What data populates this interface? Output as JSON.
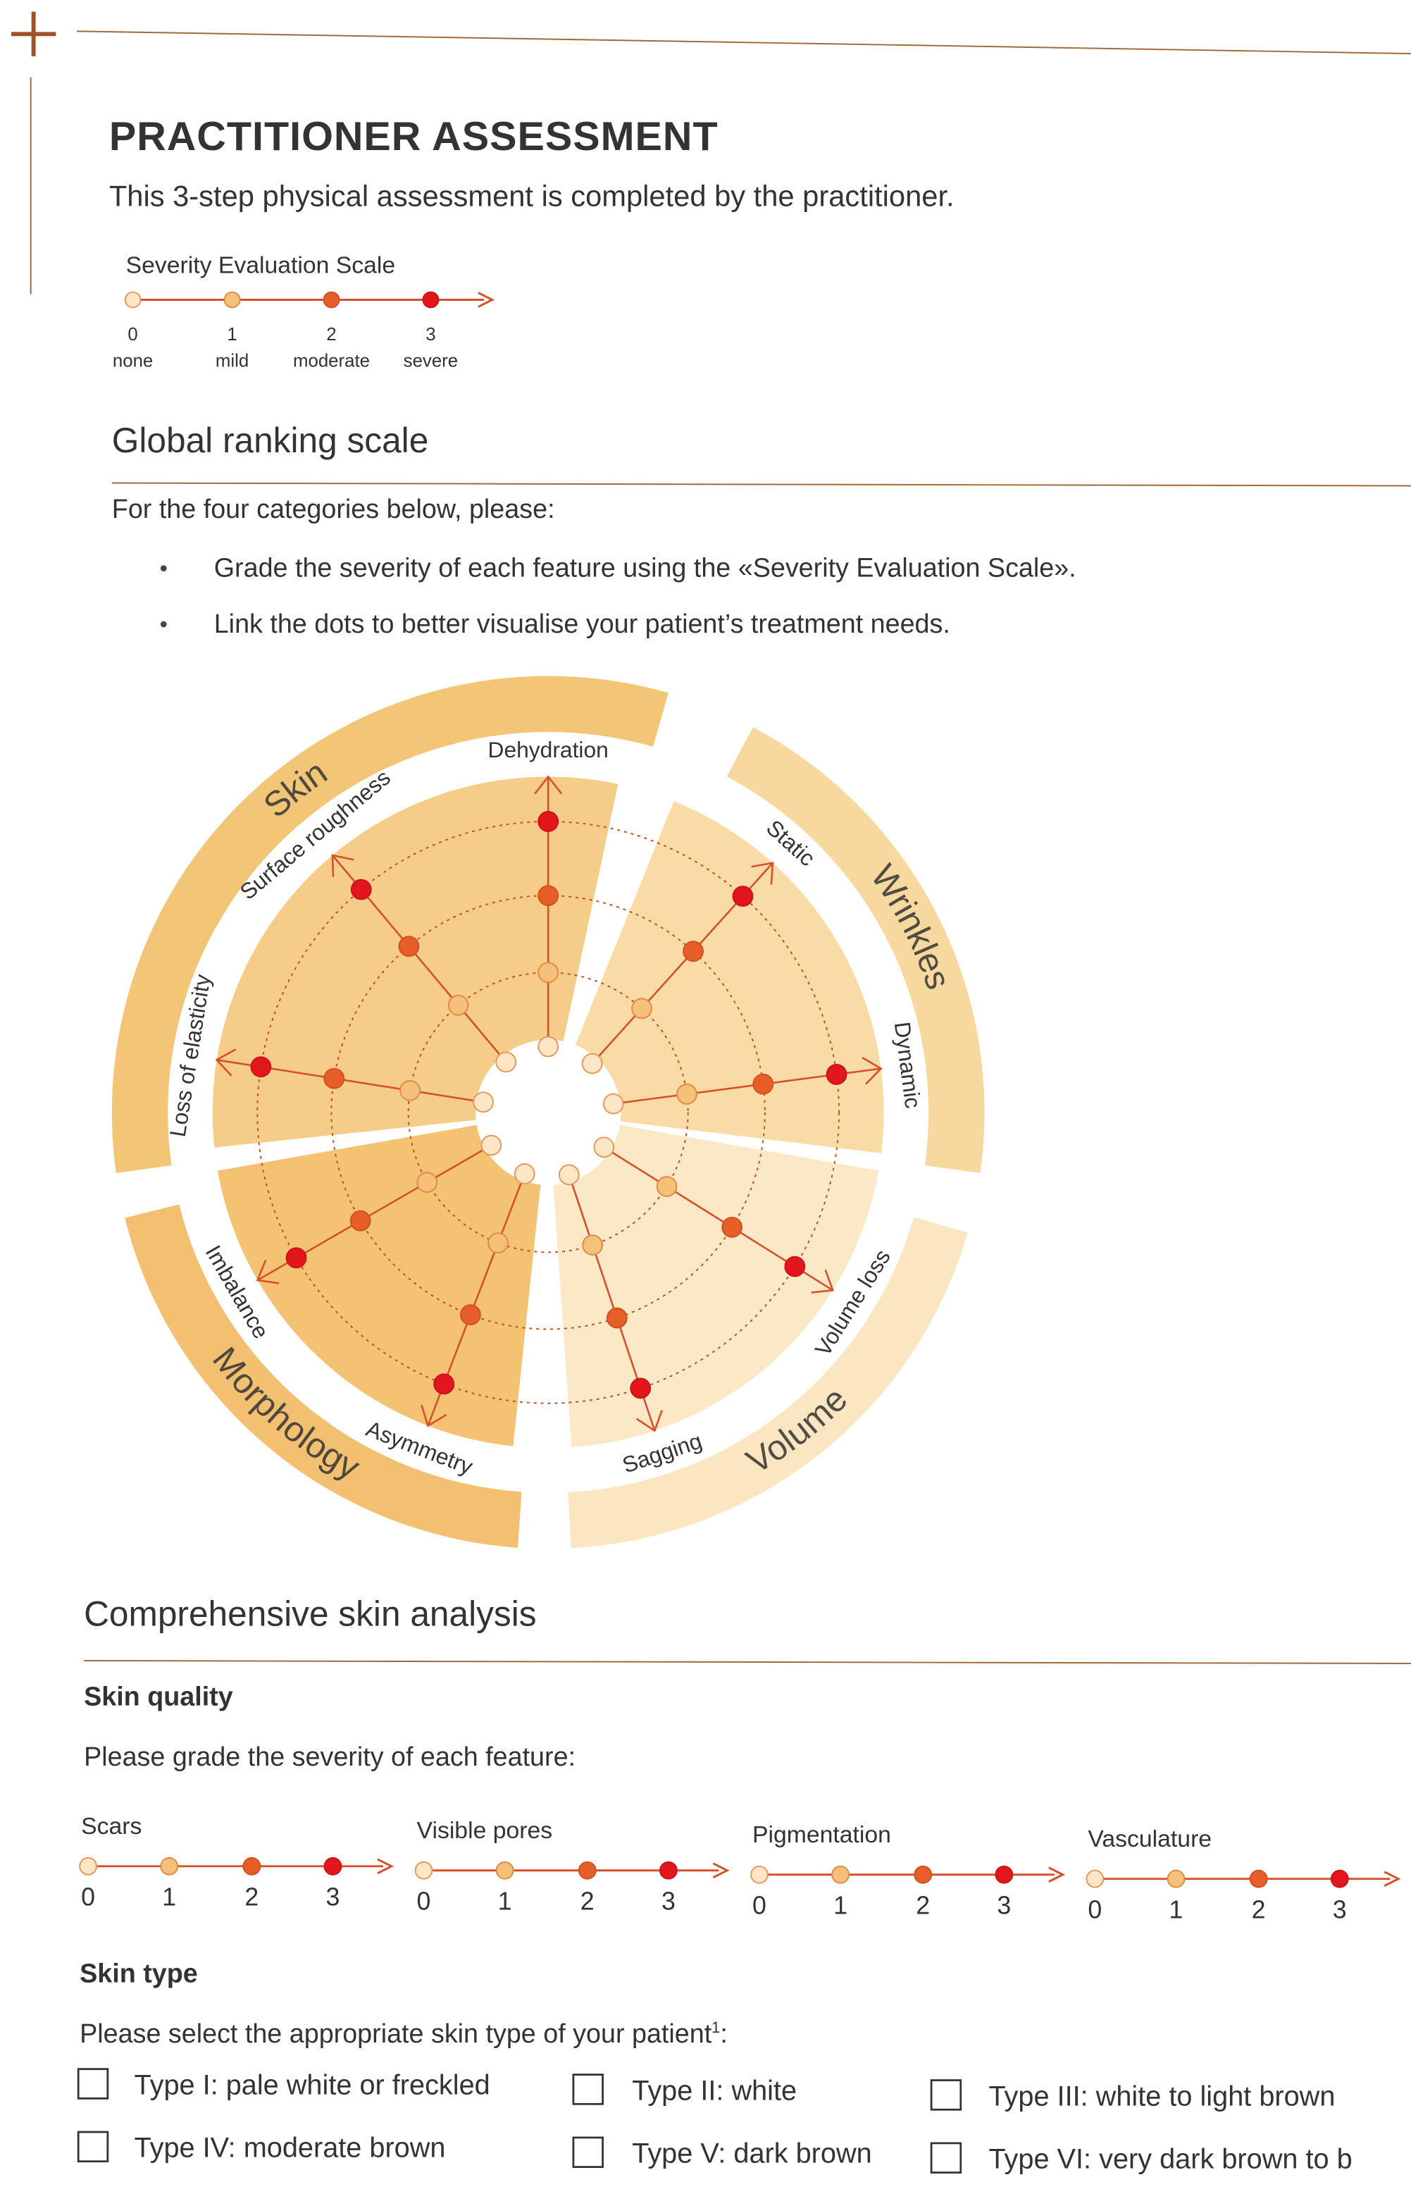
{
  "header": {
    "title": "PRACTITIONER ASSESSMENT",
    "subtitle": "This 3-step physical assessment is completed by the practitioner."
  },
  "severity_scale": {
    "title": "Severity Evaluation Scale",
    "levels": [
      {
        "number": "0",
        "label": "none"
      },
      {
        "number": "1",
        "label": "mild"
      },
      {
        "number": "2",
        "label": "moderate"
      },
      {
        "number": "3",
        "label": "severe"
      }
    ]
  },
  "global_ranking": {
    "heading": "Global ranking scale",
    "intro": "For the four categories below, please:",
    "bullets": [
      "Grade the severity of each feature using the «Severity Evaluation Scale».",
      "Link the dots to better visualise your patient’s treatment needs."
    ],
    "categories": [
      {
        "name": "Skin",
        "features": [
          "Dehydration",
          "Surface roughness",
          "Loss of elasticity"
        ]
      },
      {
        "name": "Wrinkles",
        "features": [
          "Static",
          "Dynamic"
        ]
      },
      {
        "name": "Volume",
        "features": [
          "Volume loss",
          "Sagging"
        ]
      },
      {
        "name": "Morphology",
        "features": [
          "Asymmetry",
          "Imbalance"
        ]
      }
    ]
  },
  "skin_analysis": {
    "heading": "Comprehensive skin analysis",
    "skin_quality": {
      "title": "Skin quality",
      "instruction": "Please grade the severity of each feature:",
      "features": [
        {
          "name": "Scars",
          "levels": [
            "0",
            "1",
            "2",
            "3"
          ]
        },
        {
          "name": "Visible pores",
          "levels": [
            "0",
            "1",
            "2",
            "3"
          ]
        },
        {
          "name": "Pigmentation",
          "levels": [
            "0",
            "1",
            "2",
            "3"
          ]
        },
        {
          "name": "Vasculature",
          "levels": [
            "0",
            "1",
            "2",
            "3"
          ]
        }
      ]
    },
    "skin_type": {
      "title": "Skin type",
      "instruction": "Please select the appropriate skin type of your patient",
      "footnote_ref": "1",
      "suffix": ":",
      "options": [
        "Type I: pale white or freckled",
        "Type II: white",
        "Type III: white to light brown",
        "Type IV: moderate brown",
        "Type V: dark brown",
        "Type VI: very dark brown to b"
      ]
    }
  }
}
